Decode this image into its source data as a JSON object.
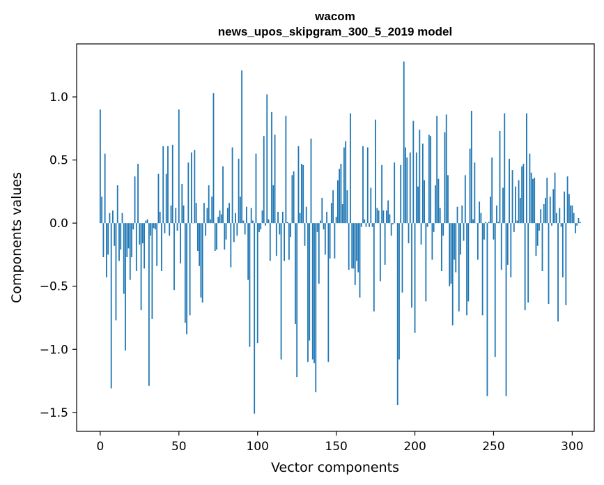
{
  "chart_data": {
    "type": "bar",
    "title": "wacom",
    "subtitle": "news_upos_skipgram_300_5_2019 model",
    "xlabel": "Vector components",
    "ylabel": "Components values",
    "xlim": [
      -15,
      314
    ],
    "ylim": [
      -1.65,
      1.42
    ],
    "xticks": [
      0,
      50,
      100,
      150,
      200,
      250,
      300
    ],
    "xtick_labels": [
      "0",
      "50",
      "100",
      "150",
      "200",
      "250",
      "300"
    ],
    "yticks": [
      -1.5,
      -1.0,
      -0.5,
      0.0,
      0.5,
      1.0
    ],
    "ytick_labels": [
      "−1.5",
      "−1.0",
      "−0.5",
      "0.0",
      "0.5",
      "1.0"
    ],
    "bar_color": "#1f77b4",
    "grid": false,
    "values": [
      0.9,
      0.21,
      -0.27,
      0.55,
      -0.43,
      -0.25,
      0.08,
      -1.31,
      0.1,
      -0.18,
      -0.77,
      0.3,
      -0.3,
      -0.21,
      0.08,
      -0.56,
      -1.01,
      -0.27,
      -0.2,
      -0.45,
      -0.27,
      -0.05,
      0.37,
      -0.38,
      0.47,
      -0.17,
      -0.69,
      -0.16,
      -0.36,
      0.02,
      0.03,
      -1.29,
      -0.1,
      -0.76,
      -0.04,
      -0.05,
      -0.34,
      0.39,
      0.09,
      -0.38,
      0.61,
      -0.08,
      0.39,
      0.61,
      -0.1,
      0.14,
      0.62,
      -0.53,
      0.12,
      -0.06,
      0.9,
      -0.32,
      0.31,
      0.14,
      -0.79,
      -0.88,
      0.48,
      -0.73,
      0.56,
      0.0,
      0.58,
      0.16,
      -0.22,
      -0.34,
      -0.59,
      -0.63,
      0.16,
      -0.1,
      0.12,
      0.3,
      0.03,
      0.21,
      1.03,
      -0.22,
      -0.21,
      0.05,
      0.1,
      0.07,
      0.45,
      -0.21,
      -0.13,
      0.12,
      0.16,
      -0.35,
      0.6,
      -0.15,
      0.08,
      -0.1,
      0.51,
      0.21,
      1.21,
      0.02,
      -0.09,
      0.13,
      -0.45,
      -0.98,
      0.12,
      0.02,
      -1.51,
      0.55,
      -0.95,
      -0.07,
      -0.05,
      0.1,
      0.69,
      -0.02,
      1.02,
      0.03,
      -0.3,
      0.88,
      0.3,
      0.7,
      -0.26,
      0.09,
      -0.09,
      -1.08,
      0.09,
      -0.3,
      0.85,
      0.01,
      -0.29,
      -0.11,
      0.38,
      0.41,
      -0.8,
      -1.22,
      0.61,
      0.08,
      0.47,
      0.46,
      -0.18,
      0.13,
      -1.1,
      -0.93,
      0.67,
      -1.08,
      -1.11,
      -1.34,
      -0.07,
      -0.48,
      0.02,
      0.2,
      -0.05,
      -0.25,
      0.09,
      -1.1,
      -0.28,
      0.16,
      0.26,
      -0.28,
      0.05,
      0.34,
      0.43,
      0.47,
      0.15,
      0.6,
      0.65,
      0.26,
      -0.37,
      0.87,
      -0.36,
      -0.36,
      -0.49,
      -0.3,
      -0.39,
      -0.59,
      -0.03,
      0.61,
      0.03,
      -0.03,
      0.6,
      -0.03,
      0.28,
      -0.03,
      -0.7,
      0.82,
      0.12,
      0.1,
      -0.46,
      0.46,
      0.1,
      -0.33,
      0.1,
      0.18,
      0.07,
      -0.1,
      -0.01,
      0.48,
      0.0,
      -1.44,
      -1.08,
      0.46,
      -0.55,
      1.28,
      0.6,
      0.52,
      -0.16,
      0.56,
      -0.67,
      0.81,
      -0.87,
      0.56,
      0.29,
      0.74,
      -0.17,
      0.63,
      0.34,
      -0.62,
      -0.03,
      0.7,
      0.69,
      -0.29,
      -0.07,
      0.3,
      0.85,
      0.35,
      0.12,
      -0.38,
      -0.1,
      0.72,
      0.86,
      0.38,
      -0.5,
      -0.48,
      -0.81,
      -0.29,
      -0.39,
      0.13,
      -0.7,
      -0.25,
      0.14,
      -0.14,
      0.38,
      -0.73,
      -0.62,
      0.59,
      0.89,
      0.03,
      0.48,
      0.0,
      -0.29,
      0.17,
      0.08,
      -0.73,
      -0.13,
      0.01,
      -1.37,
      0.01,
      0.21,
      0.52,
      -0.13,
      -1.06,
      0.14,
      0.01,
      0.73,
      -0.37,
      0.28,
      0.87,
      -1.37,
      -0.33,
      0.51,
      -0.43,
      0.42,
      -0.07,
      0.29,
      0.02,
      0.34,
      0.2,
      0.45,
      0.47,
      -0.69,
      0.87,
      -0.63,
      0.55,
      0.4,
      0.35,
      0.36,
      -0.26,
      -0.18,
      -0.06,
      0.11,
      -0.38,
      0.15,
      0.2,
      0.36,
      -0.64,
      0.21,
      -0.02,
      0.27,
      0.4,
      0.08,
      -0.78,
      0.12,
      -0.03,
      -0.43,
      0.25,
      -0.65,
      0.37,
      0.23,
      0.14,
      0.14,
      0.08,
      -0.08,
      -0.02,
      0.04,
      0.01
    ]
  }
}
